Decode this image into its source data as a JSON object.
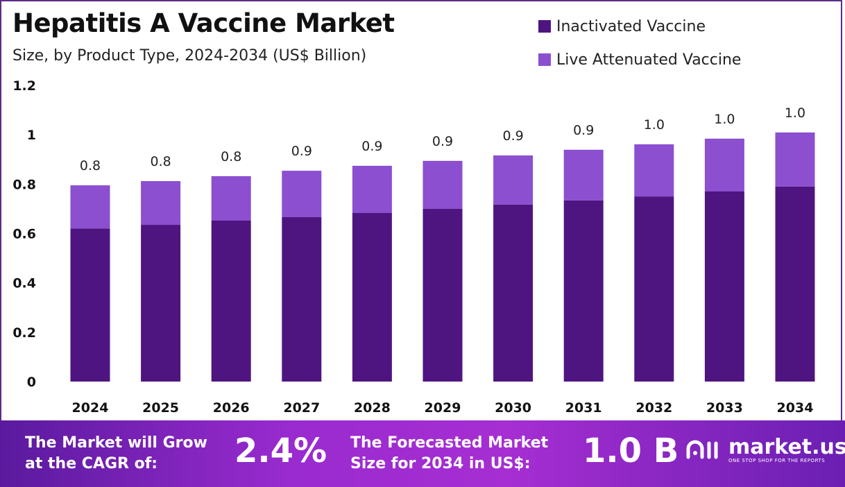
{
  "chart_data": {
    "type": "bar",
    "stacked": true,
    "title": "Hepatitis A Vaccine Market",
    "subtitle": "Size, by Product Type, 2024-2034 (US$ Billion)",
    "categories": [
      "2024",
      "2025",
      "2026",
      "2027",
      "2028",
      "2029",
      "2030",
      "2031",
      "2032",
      "2033",
      "2034"
    ],
    "series": [
      {
        "name": "Inactivated Vaccine",
        "color": "#4e1580",
        "values": [
          0.62,
          0.635,
          0.652,
          0.666,
          0.683,
          0.7,
          0.717,
          0.734,
          0.75,
          0.77,
          0.79
        ]
      },
      {
        "name": "Live Attenuated Vaccine",
        "color": "#8b4fcf",
        "values": [
          0.175,
          0.177,
          0.18,
          0.188,
          0.191,
          0.194,
          0.199,
          0.205,
          0.211,
          0.214,
          0.219
        ]
      }
    ],
    "totals_labels": [
      "0.8",
      "0.8",
      "0.8",
      "0.9",
      "0.9",
      "0.9",
      "0.9",
      "0.9",
      "1.0",
      "1.0",
      "1.0"
    ],
    "yticks": [
      "0",
      "0.2",
      "0.4",
      "0.6",
      "0.8",
      "1",
      "1.2"
    ],
    "ylim": [
      0,
      1.2
    ],
    "grid": false,
    "legend": "top-right"
  },
  "footer": {
    "cagr_text_1": "The Market will Grow",
    "cagr_text_2": "at the CAGR of:",
    "cagr_value": "2.4%",
    "forecast_text_1": "The Forecasted Market",
    "forecast_text_2": "Size for 2034 in US$:",
    "forecast_value": "1.0 B",
    "logo_name": "market.us",
    "logo_tagline": "ONE STOP SHOP FOR THE REPORTS"
  }
}
